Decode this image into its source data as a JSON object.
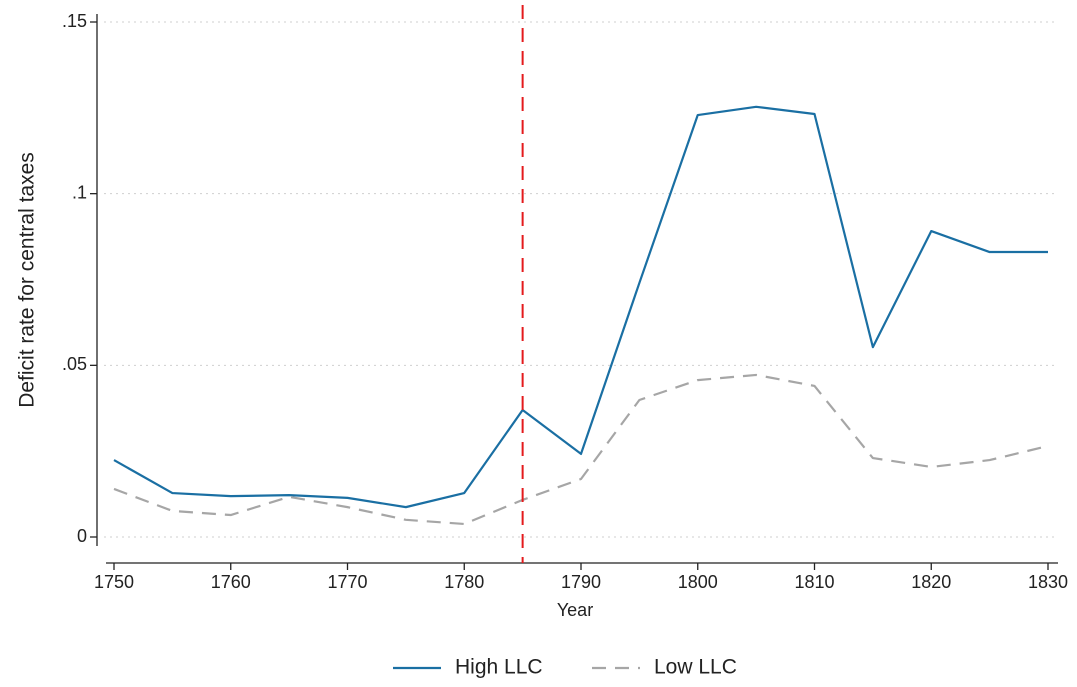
{
  "chart_data": {
    "type": "line",
    "x_label": "Year",
    "y_label": "Deficit rate for central taxes",
    "x": [
      1750,
      1755,
      1760,
      1765,
      1770,
      1775,
      1780,
      1785,
      1790,
      1795,
      1800,
      1805,
      1810,
      1815,
      1820,
      1825,
      1830
    ],
    "series": [
      {
        "name": "High LLC",
        "color": "#1a6fa3",
        "style": "solid",
        "values": [
          0.0224,
          0.0128,
          0.0119,
          0.0122,
          0.0114,
          0.0087,
          0.0128,
          0.037,
          0.0242,
          0.074,
          0.1229,
          0.1253,
          0.1232,
          0.0553,
          0.0891,
          0.083,
          0.083
        ]
      },
      {
        "name": "Low LLC",
        "color": "#a6a6a6",
        "style": "dashed",
        "values": [
          0.014,
          0.0076,
          0.0064,
          0.0117,
          0.0087,
          0.005,
          0.0038,
          0.0108,
          0.0169,
          0.0399,
          0.0457,
          0.0472,
          0.044,
          0.023,
          0.0204,
          0.0224,
          0.0265
        ]
      }
    ],
    "reference_line": {
      "x": 1785,
      "color": "#e41a1c",
      "style": "dashed"
    },
    "xlim": [
      1750,
      1830
    ],
    "xticks": [
      1750,
      1760,
      1770,
      1780,
      1790,
      1800,
      1810,
      1820,
      1830
    ],
    "ylim": [
      0,
      0.15
    ],
    "yticks": [
      0,
      {
        "value": 0.05,
        "label": ".05"
      },
      {
        "value": 0.1,
        "label": ".1"
      },
      {
        "value": 0.15,
        "label": ".15"
      }
    ],
    "grid": true,
    "legend": "bottom"
  }
}
